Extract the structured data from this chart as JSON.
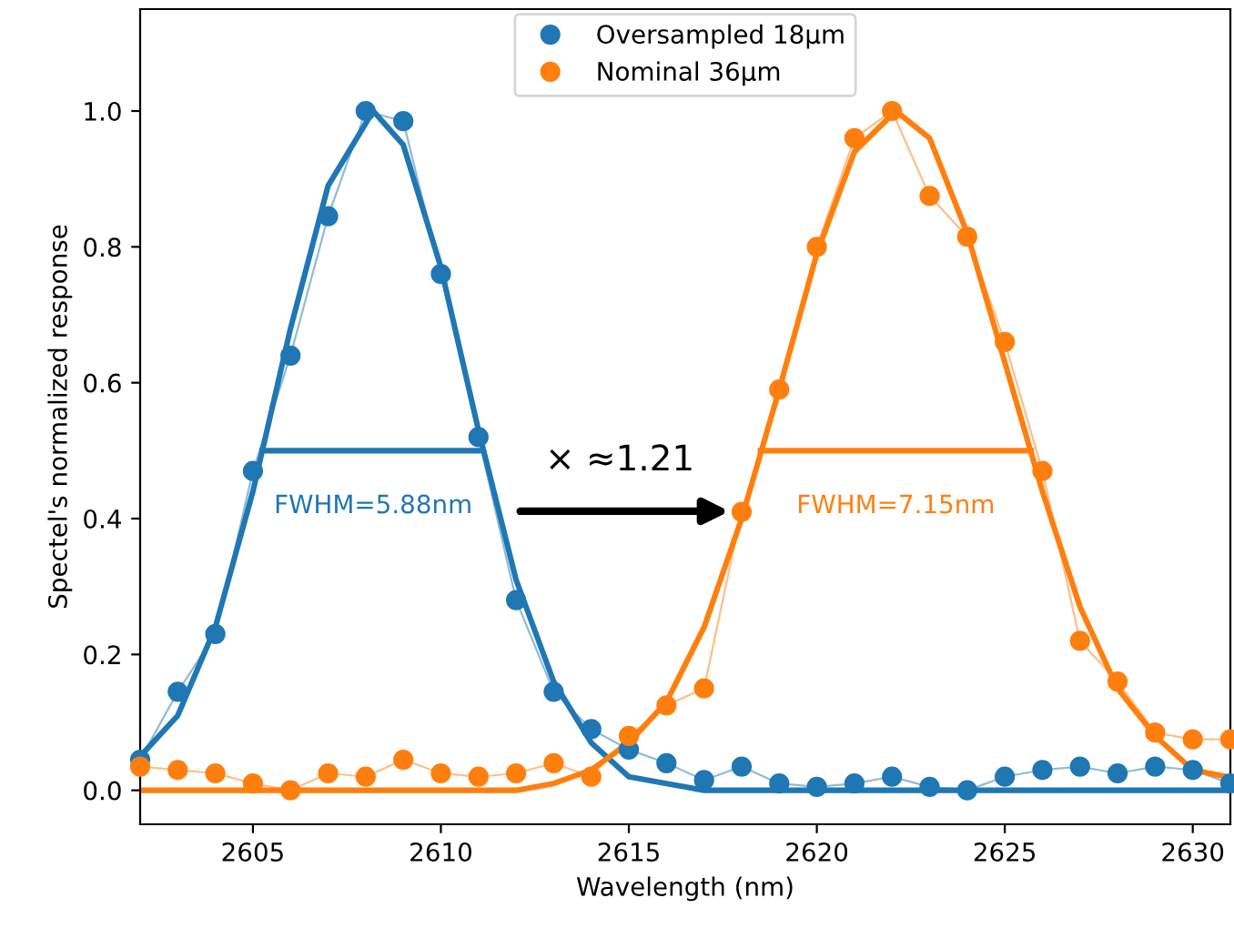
{
  "chart_data": {
    "type": "line",
    "xlabel": "Wavelength (nm)",
    "ylabel": "Spectel's normalized response",
    "xlim": [
      2602,
      2631
    ],
    "ylim": [
      -0.05,
      1.15
    ],
    "xticks": [
      2605,
      2610,
      2615,
      2620,
      2625,
      2630
    ],
    "yticks": [
      {
        "value": 0,
        "label": "0.0"
      },
      {
        "value": 0.2,
        "label": "0.2"
      },
      {
        "value": 0.4,
        "label": "0.4"
      },
      {
        "value": 0.6,
        "label": "0.6"
      },
      {
        "value": 0.8,
        "label": "0.8"
      },
      {
        "value": 1,
        "label": "1.0"
      }
    ],
    "grid": false,
    "legend": "top",
    "series": [
      {
        "name": "Oversampled 18µm",
        "color": "#1f77b4",
        "marker": "circle",
        "x": [
          2602,
          2603,
          2604,
          2605,
          2606,
          2607,
          2608,
          2609,
          2610,
          2611,
          2612,
          2613,
          2614,
          2615,
          2616,
          2617,
          2618,
          2619,
          2620,
          2621,
          2622,
          2623,
          2624,
          2625,
          2626,
          2627,
          2628,
          2629,
          2630,
          2631
        ],
        "values": [
          0.045,
          0.145,
          0.23,
          0.47,
          0.64,
          0.845,
          1.0,
          0.985,
          0.76,
          0.52,
          0.28,
          0.145,
          0.09,
          0.06,
          0.04,
          0.015,
          0.035,
          0.01,
          0.005,
          0.01,
          0.02,
          0.005,
          0.0,
          0.02,
          0.03,
          0.035,
          0.025,
          0.035,
          0.03,
          0.01
        ]
      },
      {
        "name": "Nominal 36µm",
        "color": "#ff7f0e",
        "marker": "circle",
        "x": [
          2602,
          2603,
          2604,
          2605,
          2606,
          2607,
          2608,
          2609,
          2610,
          2611,
          2612,
          2613,
          2614,
          2615,
          2616,
          2617,
          2618,
          2619,
          2620,
          2621,
          2622,
          2623,
          2624,
          2625,
          2626,
          2627,
          2628,
          2629,
          2630,
          2631
        ],
        "values": [
          0.035,
          0.03,
          0.025,
          0.01,
          0.0,
          0.025,
          0.02,
          0.045,
          0.025,
          0.02,
          0.025,
          0.04,
          0.02,
          0.08,
          0.125,
          0.15,
          0.41,
          0.59,
          0.8,
          0.96,
          1.0,
          0.875,
          0.815,
          0.66,
          0.47,
          0.22,
          0.16,
          0.085,
          0.075,
          0.075
        ]
      },
      {
        "color": "#1f77b4",
        "x": [
          2602,
          2603,
          2604,
          2605,
          2606,
          2607,
          2608.2,
          2609,
          2610,
          2611,
          2612,
          2613,
          2614,
          2615,
          2616,
          2617,
          2618,
          2620,
          2625,
          2630.9
        ],
        "values": [
          0.05,
          0.11,
          0.24,
          0.44,
          0.68,
          0.89,
          1.0,
          0.95,
          0.77,
          0.53,
          0.31,
          0.16,
          0.07,
          0.02,
          0.01,
          0.0,
          0.0,
          0.0,
          0.0,
          0.0
        ]
      },
      {
        "color": "#ff7f0e",
        "x": [
          2602,
          2610,
          2612,
          2613,
          2614,
          2615,
          2616,
          2617,
          2618,
          2619,
          2620,
          2621,
          2622.1,
          2623,
          2624,
          2625,
          2626,
          2627,
          2628,
          2629,
          2630,
          2630.9
        ],
        "values": [
          0.0,
          0.0,
          0.0,
          0.01,
          0.03,
          0.07,
          0.13,
          0.24,
          0.4,
          0.59,
          0.79,
          0.94,
          1.0,
          0.96,
          0.82,
          0.63,
          0.44,
          0.27,
          0.15,
          0.08,
          0.03,
          0.02
        ]
      },
      {
        "color": "#1f77b4",
        "x": [
          2605.25,
          2611.1
        ],
        "values": [
          0.5,
          0.5
        ]
      },
      {
        "color": "#ff7f0e",
        "x": [
          2618.5,
          2625.7
        ],
        "values": [
          0.5,
          0.5
        ]
      }
    ],
    "annotations": [
      {
        "text": "FWHM=5.88nm",
        "x": 2608.2,
        "y": 0.5
      },
      {
        "text": "FWHM=7.15nm",
        "x": 2622.1,
        "y": 0.5
      },
      "× ≈1.21"
    ]
  }
}
